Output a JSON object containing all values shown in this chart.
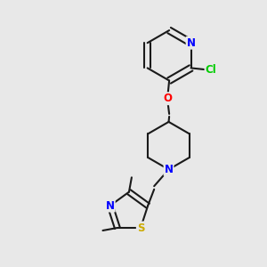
{
  "bg_color": "#e8e8e8",
  "bond_color": "#1a1a1a",
  "N_color": "#0000ff",
  "O_color": "#ff0000",
  "S_color": "#ccaa00",
  "Cl_color": "#00cc00",
  "C_color": "#1a1a1a",
  "line_width": 1.5,
  "font_size": 8.5,
  "figsize": [
    3.0,
    3.0
  ],
  "dpi": 100,
  "xlim": [
    0,
    1
  ],
  "ylim": [
    0,
    1
  ]
}
